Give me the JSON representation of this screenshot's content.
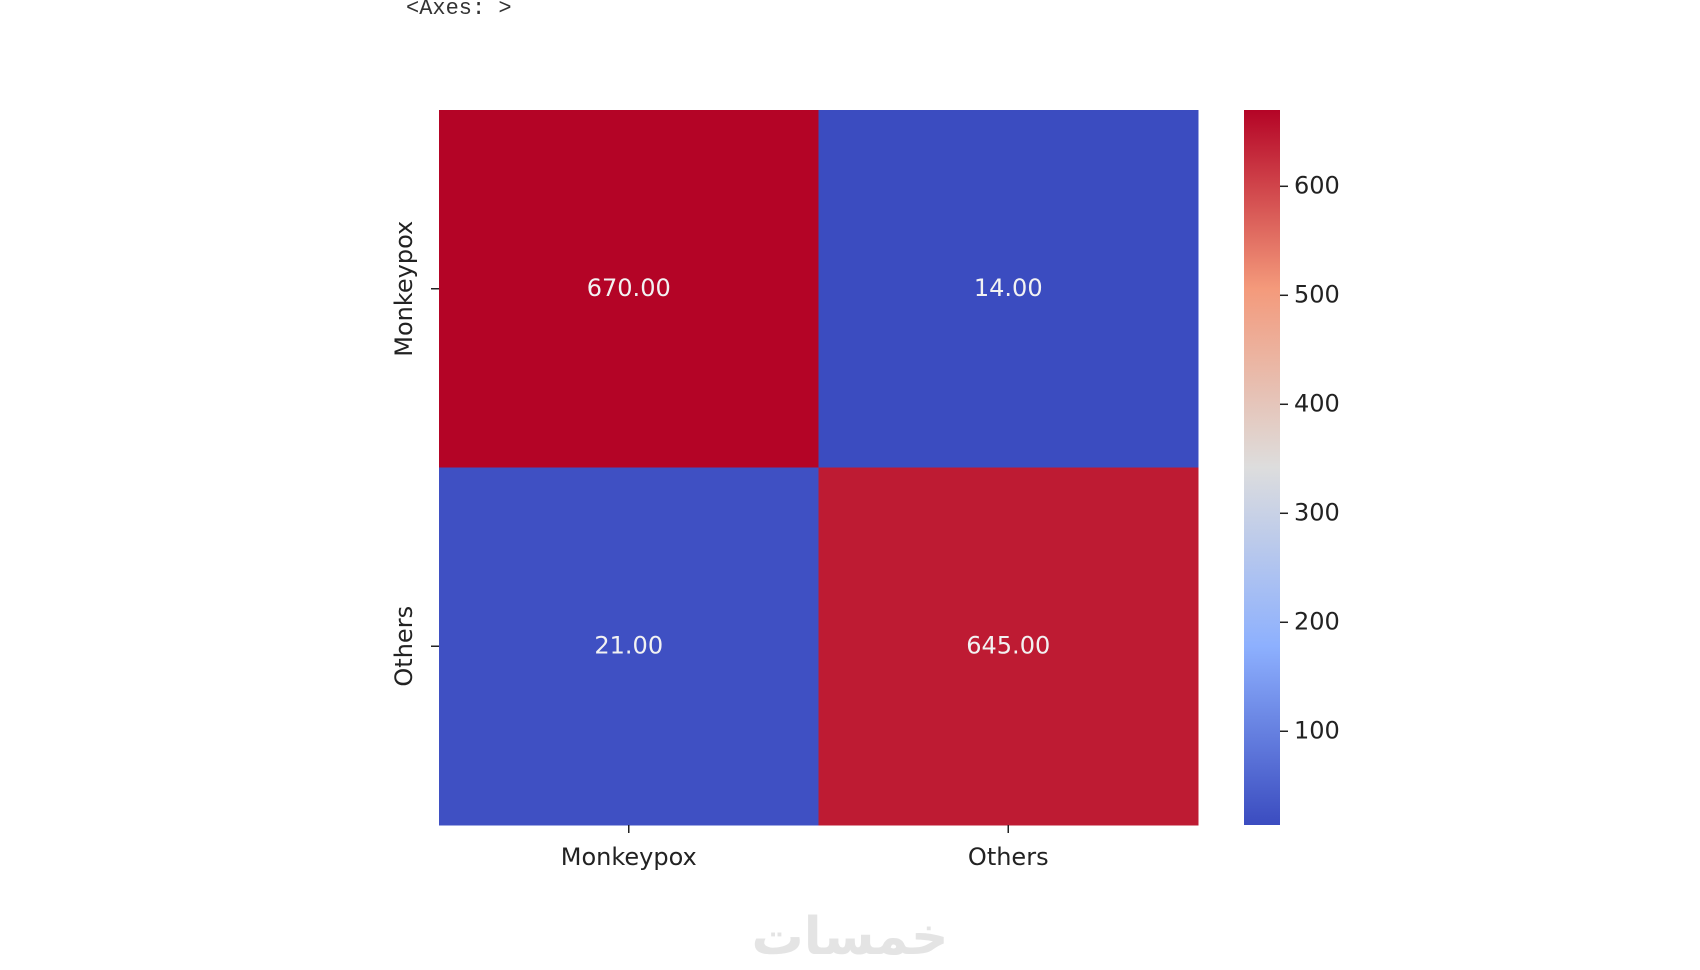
{
  "header": "<Axes: >",
  "chart_data": {
    "type": "heatmap",
    "x_categories": [
      "Monkeypox",
      "Others"
    ],
    "y_categories": [
      "Monkeypox",
      "Others"
    ],
    "values": [
      [
        670,
        14
      ],
      [
        21,
        645
      ]
    ],
    "value_labels": [
      [
        "670.00",
        "14.00"
      ],
      [
        "21.00",
        "645.00"
      ]
    ],
    "colormap": "coolwarm",
    "colorbar_lim": [
      14,
      670
    ],
    "colorbar_ticks": [
      100,
      200,
      300,
      400,
      500,
      600
    ]
  },
  "watermark": "خمسات"
}
